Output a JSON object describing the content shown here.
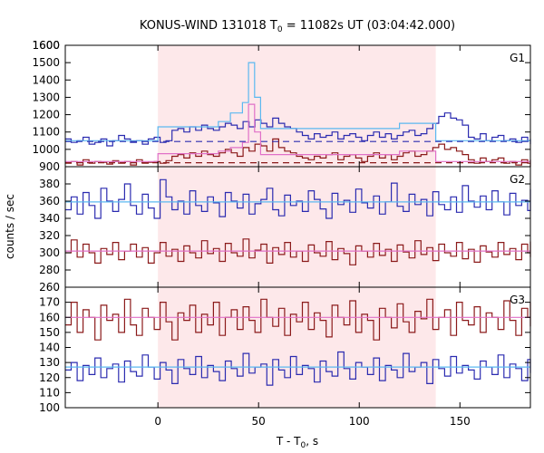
{
  "chart_data": {
    "type": "line",
    "title": "KONUS-WIND 131018 T",
    "title_sub": "0",
    "title_tail": " = 11082s UT (03:04:42.000)",
    "xlabel": "T - T",
    "xlabel_sub": "0",
    "xlabel_tail": ", s",
    "ylabel": "counts / sec",
    "xlim": [
      -46,
      185
    ],
    "xticks": [
      0,
      50,
      100,
      150
    ],
    "highlight_interval": [
      0,
      138
    ],
    "highlight_color": "#fde8ea",
    "panels": [
      {
        "label": "G1",
        "ylim": [
          900,
          1600
        ],
        "yticks": [
          900,
          1000,
          1100,
          1200,
          1300,
          1400,
          1500,
          1600
        ],
        "series": [
          {
            "color": "#2b2bb0",
            "style": "step",
            "x0": -46,
            "dt": 2.944,
            "y": [
              1060,
              1040,
              1050,
              1070,
              1030,
              1040,
              1060,
              1020,
              1050,
              1080,
              1060,
              1040,
              1050,
              1030,
              1060,
              1070,
              1040,
              1050,
              1110,
              1120,
              1100,
              1130,
              1110,
              1140,
              1120,
              1110,
              1130,
              1150,
              1140,
              1120,
              1160,
              1130,
              1170,
              1150,
              1130,
              1180,
              1150,
              1130,
              1120,
              1100,
              1080,
              1060,
              1090,
              1070,
              1080,
              1100,
              1060,
              1080,
              1090,
              1070,
              1050,
              1080,
              1100,
              1070,
              1090,
              1060,
              1080,
              1100,
              1110,
              1080,
              1090,
              1120,
              1150,
              1190,
              1210,
              1180,
              1170,
              1140,
              1070,
              1060,
              1090,
              1050,
              1070,
              1080,
              1050,
              1060,
              1040,
              1070,
              1050,
              1060,
              1040,
              1050,
              1060,
              1030,
              1050,
              1060
            ]
          },
          {
            "color": "#8b1a1a",
            "style": "step",
            "x0": -46,
            "dt": 2.944,
            "y": [
              920,
              930,
              910,
              940,
              920,
              930,
              925,
              915,
              935,
              920,
              930,
              910,
              940,
              920,
              925,
              930,
              920,
              935,
              960,
              970,
              950,
              980,
              960,
              990,
              970,
              960,
              980,
              1000,
              980,
              960,
              1010,
              990,
              1030,
              1020,
              990,
              1060,
              1010,
              990,
              980,
              960,
              950,
              940,
              960,
              950,
              970,
              980,
              940,
              960,
              970,
              950,
              930,
              960,
              980,
              950,
              970,
              940,
              960,
              980,
              990,
              960,
              970,
              990,
              1010,
              1030,
              1000,
              1010,
              990,
              970,
              940,
              920,
              950,
              930,
              940,
              950,
              920,
              930,
              910,
              940,
              920,
              930,
              910,
              920,
              930,
              900,
              920,
              940
            ]
          },
          {
            "color": "#5bb8f0",
            "style": "step-model",
            "x": [
              -46,
              0,
              0,
              30,
              30,
              36,
              36,
              42,
              42,
              45,
              45,
              48,
              48,
              51,
              51,
              120,
              120,
              138,
              138,
              185
            ],
            "y": [
              1050,
              1050,
              1130,
              1130,
              1160,
              1160,
              1210,
              1210,
              1270,
              1270,
              1500,
              1500,
              1300,
              1300,
              1120,
              1120,
              1150,
              1150,
              1050,
              1050
            ]
          },
          {
            "color": "#e070c8",
            "style": "step-model",
            "x": [
              -46,
              0,
              0,
              30,
              30,
              36,
              36,
              42,
              42,
              45,
              45,
              48,
              48,
              51,
              51,
              120,
              120,
              138,
              138,
              185
            ],
            "y": [
              930,
              930,
              975,
              975,
              990,
              990,
              1010,
              1010,
              1040,
              1040,
              1260,
              1260,
              1100,
              1100,
              970,
              970,
              990,
              990,
              930,
              930
            ]
          },
          {
            "color": "#2b2bb0",
            "style": "dashed",
            "x": [
              -46,
              185
            ],
            "y": [
              1045,
              1045
            ]
          },
          {
            "color": "#8b1a1a",
            "style": "dashed",
            "x": [
              -46,
              185
            ],
            "y": [
              923,
              923
            ]
          }
        ]
      },
      {
        "label": "G2",
        "ylim": [
          260,
          400
        ],
        "yticks": [
          260,
          280,
          300,
          320,
          340,
          360,
          380
        ],
        "series": [
          {
            "color": "#2b2bb0",
            "style": "step",
            "x0": -46,
            "dt": 2.944,
            "y": [
              350,
              365,
              345,
              370,
              355,
              340,
              375,
              360,
              348,
              362,
              380,
              355,
              345,
              368,
              352,
              340,
              385,
              365,
              350,
              360,
              345,
              372,
              355,
              348,
              365,
              358,
              342,
              370,
              360,
              352,
              368,
              345,
              357,
              362,
              375,
              350,
              343,
              367,
              355,
              360,
              348,
              372,
              362,
              351,
              340,
              369,
              356,
              361,
              347,
              374,
              358,
              352,
              366,
              345,
              359,
              381,
              354,
              348,
              368,
              356,
              362,
              343,
              371,
              356,
              350,
              365,
              347,
              378,
              360,
              353,
              366,
              350,
              372,
              359,
              344,
              369,
              355,
              361,
              349,
              374,
              360
            ]
          },
          {
            "color": "#8b1a1a",
            "style": "step",
            "x0": -46,
            "dt": 2.944,
            "y": [
              300,
              315,
              295,
              310,
              300,
              288,
              305,
              298,
              312,
              292,
              302,
              310,
              295,
              306,
              288,
              300,
              312,
              296,
              304,
              290,
              308,
              300,
              294,
              314,
              299,
              305,
              290,
              311,
              300,
              296,
              316,
              294,
              303,
              310,
              288,
              306,
              298,
              312,
              295,
              302,
              290,
              309,
              300,
              296,
              313,
              292,
              305,
              299,
              286,
              308,
              302,
              295,
              311,
              297,
              304,
              290,
              309,
              301,
              294,
              314,
              298,
              306,
              291,
              310,
              300,
              296,
              312,
              293,
              304,
              289,
              308,
              301,
              295,
              312,
              298,
              305,
              292,
              310,
              300,
              295,
              313
            ]
          },
          {
            "color": "#5bb8f0",
            "style": "flat",
            "x": [
              -46,
              185
            ],
            "y": [
              359,
              359
            ]
          },
          {
            "color": "#e070c8",
            "style": "flat",
            "x": [
              -46,
              185
            ],
            "y": [
              302,
              302
            ]
          }
        ]
      },
      {
        "label": "G3",
        "ylim": [
          100,
          180
        ],
        "yticks": [
          100,
          110,
          120,
          130,
          140,
          150,
          160,
          170
        ],
        "series": [
          {
            "color": "#8b1a1a",
            "style": "step",
            "x0": -46,
            "dt": 2.944,
            "y": [
              155,
              170,
              150,
              165,
              160,
              145,
              168,
              158,
              162,
              150,
              172,
              155,
              148,
              166,
              160,
              152,
              170,
              157,
              145,
              163,
              158,
              168,
              150,
              162,
              155,
              170,
              148,
              160,
              165,
              152,
              167,
              158,
              150,
              172,
              160,
              154,
              166,
              148,
              162,
              157,
              170,
              152,
              163,
              158,
              147,
              168,
              160,
              155,
              171,
              150,
              162,
              158,
              145,
              166,
              160,
              153,
              169,
              157,
              150,
              164,
              159,
              172,
              152,
              160,
              165,
              148,
              170,
              158,
              155,
              167,
              150,
              163,
              160,
              152,
              171,
              158,
              148,
              166,
              160,
              154,
              170
            ]
          },
          {
            "color": "#2b2bb0",
            "style": "step",
            "x0": -46,
            "dt": 2.944,
            "y": [
              125,
              130,
              118,
              128,
              122,
              133,
              120,
              126,
              129,
              117,
              131,
              124,
              121,
              135,
              127,
              119,
              130,
              125,
              116,
              132,
              126,
              122,
              134,
              120,
              128,
              124,
              118,
              131,
              126,
              121,
              136,
              123,
              127,
              129,
              115,
              132,
              125,
              120,
              134,
              122,
              128,
              126,
              117,
              131,
              124,
              121,
              137,
              126,
              119,
              130,
              127,
              122,
              133,
              118,
              128,
              125,
              120,
              136,
              124,
              127,
              130,
              116,
              132,
              126,
              121,
              134,
              123,
              128,
              125,
              119,
              131,
              127,
              122,
              135,
              120,
              129,
              126,
              118,
              132,
              125,
              123
            ]
          },
          {
            "color": "#e070c8",
            "style": "flat",
            "x": [
              -46,
              185
            ],
            "y": [
              160,
              160
            ]
          },
          {
            "color": "#5bb8f0",
            "style": "flat",
            "x": [
              -46,
              185
            ],
            "y": [
              127,
              127
            ]
          }
        ]
      }
    ]
  }
}
